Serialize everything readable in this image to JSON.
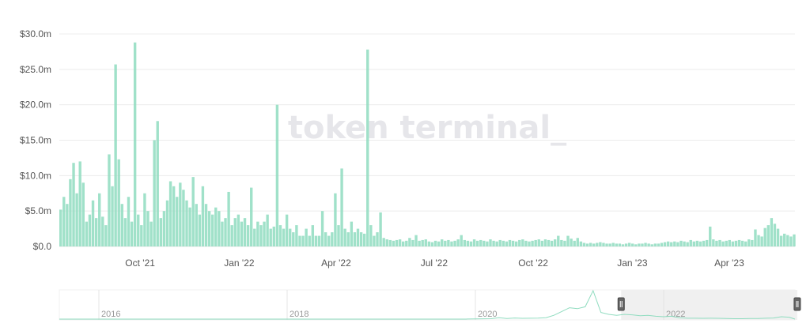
{
  "watermark": "token terminal_",
  "chart_data": {
    "type": "bar",
    "title": "",
    "xlabel": "",
    "ylabel": "",
    "unit": "$m",
    "ylim": [
      0,
      30
    ],
    "y_ticks": [
      0,
      5,
      10,
      15,
      20,
      25,
      30
    ],
    "y_tick_labels": [
      "$0.0",
      "$5.0m",
      "$10.0m",
      "$15.0m",
      "$20.0m",
      "$25.0m",
      "$30.0m"
    ],
    "x_range": [
      "2021-07-18",
      "2023-06-01"
    ],
    "x_ticks": [
      {
        "date": "2021-10-01",
        "label": "Oct '21"
      },
      {
        "date": "2022-01-01",
        "label": "Jan '22"
      },
      {
        "date": "2022-04-01",
        "label": "Apr '22"
      },
      {
        "date": "2022-07-01",
        "label": "Jul '22"
      },
      {
        "date": "2022-10-01",
        "label": "Oct '22"
      },
      {
        "date": "2023-01-01",
        "label": "Jan '23"
      },
      {
        "date": "2023-04-01",
        "label": "Apr '23"
      }
    ],
    "grid": true,
    "color": "#8fdcbf",
    "x_start": "2021-07-18",
    "x_step_days": 3,
    "values": [
      5.2,
      7.0,
      6.0,
      9.5,
      11.8,
      7.5,
      12.0,
      9.0,
      3.5,
      4.5,
      6.5,
      4.0,
      7.5,
      4.2,
      3.0,
      13.0,
      8.5,
      25.7,
      12.3,
      6.0,
      4.0,
      7.0,
      3.5,
      28.8,
      4.5,
      3.0,
      7.5,
      5.0,
      3.5,
      15.0,
      17.7,
      4.0,
      5.0,
      6.5,
      9.2,
      8.5,
      7.0,
      9.0,
      8.0,
      6.5,
      5.5,
      9.8,
      6.0,
      4.5,
      8.5,
      6.0,
      5.0,
      4.5,
      5.5,
      5.0,
      3.5,
      4.0,
      7.7,
      3.0,
      4.0,
      4.5,
      3.5,
      4.0,
      3.0,
      8.3,
      2.5,
      3.5,
      3.0,
      3.5,
      4.5,
      2.5,
      2.8,
      20.0,
      3.0,
      2.5,
      4.5,
      2.5,
      2.0,
      3.0,
      1.5,
      1.5,
      2.5,
      1.5,
      3.0,
      1.5,
      1.5,
      5.0,
      2.0,
      1.5,
      2.0,
      7.5,
      3.0,
      11.0,
      2.5,
      2.0,
      3.5,
      2.0,
      2.5,
      2.0,
      1.8,
      27.8,
      3.0,
      1.5,
      2.0,
      4.8,
      1.2,
      1.0,
      0.9,
      0.8,
      0.9,
      1.0,
      0.7,
      0.8,
      1.2,
      0.9,
      1.6,
      0.8,
      0.9,
      1.0,
      0.7,
      0.6,
      0.8,
      0.7,
      1.0,
      0.8,
      0.9,
      0.7,
      0.8,
      1.0,
      1.6,
      0.9,
      0.8,
      0.7,
      1.0,
      0.8,
      0.9,
      0.8,
      0.7,
      1.0,
      0.8,
      0.7,
      0.9,
      0.8,
      0.7,
      0.9,
      0.8,
      0.7,
      0.9,
      1.0,
      0.8,
      0.7,
      0.8,
      0.9,
      1.0,
      0.8,
      1.0,
      0.9,
      0.8,
      1.0,
      1.5,
      0.9,
      0.8,
      1.5,
      1.1,
      0.8,
      1.2,
      0.7,
      0.5,
      0.4,
      0.5,
      0.4,
      0.5,
      0.6,
      0.5,
      0.4,
      0.4,
      0.5,
      0.4,
      0.4,
      0.3,
      0.4,
      0.5,
      0.4,
      0.3,
      0.4,
      0.4,
      0.5,
      0.4,
      0.3,
      0.4,
      0.4,
      0.5,
      0.6,
      0.7,
      0.6,
      0.7,
      0.6,
      0.8,
      0.7,
      0.6,
      0.9,
      0.7,
      0.8,
      0.7,
      0.8,
      0.9,
      2.8,
      1.0,
      0.8,
      0.9,
      0.7,
      0.8,
      0.9,
      0.7,
      0.8,
      0.9,
      0.8,
      0.7,
      1.0,
      0.9,
      2.4,
      1.6,
      1.4,
      2.6,
      3.0,
      4.0,
      3.2,
      2.5,
      1.5,
      1.8,
      1.6,
      1.4,
      1.7
    ]
  },
  "navigator": {
    "year_labels": [
      "2016",
      "2018",
      "2020",
      "2022"
    ],
    "selected_range": [
      "2021-07-18",
      "2023-06-01"
    ],
    "selection_fill": "#f0f0f0",
    "handle_icon": "grip-handle-icon",
    "series_start": "2019-12-01",
    "series_step_months": 1,
    "series": [
      0.1,
      0.2,
      0.3,
      0.4,
      1.5,
      0.6,
      1.2,
      0.8,
      0.9,
      1.0,
      1.5,
      4.0,
      8.0,
      12.0,
      11.0,
      13.0,
      30.0,
      7.0,
      5.0,
      4.0,
      5.0,
      4.5,
      3.5,
      4.0,
      3.0,
      2.5,
      3.0,
      1.5,
      0.9,
      0.9,
      0.8,
      0.9,
      0.8,
      0.7,
      0.4,
      0.4,
      0.6,
      0.7,
      0.9,
      1.2,
      2.5,
      2.0
    ]
  }
}
